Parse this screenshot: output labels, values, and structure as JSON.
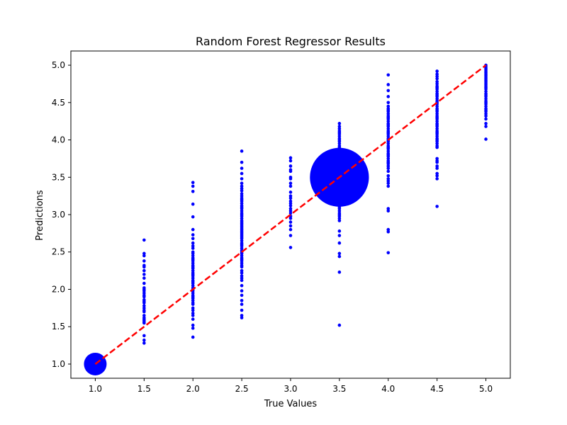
{
  "chart_data": {
    "type": "scatter",
    "title": "Random Forest Regressor Results",
    "xlabel": "True Values",
    "ylabel": "Predictions",
    "xlim": [
      0.75,
      5.25
    ],
    "ylim": [
      0.81,
      5.19
    ],
    "xticks": [
      1.0,
      1.5,
      2.0,
      2.5,
      3.0,
      3.5,
      4.0,
      4.5,
      5.0
    ],
    "yticks": [
      1.0,
      1.5,
      2.0,
      2.5,
      3.0,
      3.5,
      4.0,
      4.5,
      5.0
    ],
    "grid": false,
    "point_color": "#0000ff",
    "reference_line": {
      "x": [
        1.0,
        5.0
      ],
      "y": [
        1.0,
        5.0
      ],
      "color": "#ff0000",
      "style": "dashed"
    },
    "large_markers": [
      {
        "x": 1.0,
        "y": 1.0,
        "relative_size": 1
      },
      {
        "x": 3.5,
        "y": 3.5,
        "relative_size": 2.6
      }
    ],
    "series": [
      {
        "x": 1.5,
        "values": [
          2.66,
          2.48,
          2.45,
          2.38,
          2.32,
          2.3,
          2.25,
          2.2,
          2.15,
          2.08,
          2.02,
          2.0,
          1.98,
          1.95,
          1.92,
          1.9,
          1.86,
          1.84,
          1.82,
          1.78,
          1.75,
          1.72,
          1.7,
          1.65,
          1.62,
          1.6,
          1.58,
          1.56,
          1.55,
          1.38,
          1.32,
          1.28
        ]
      },
      {
        "x": 2.0,
        "values": [
          3.43,
          3.38,
          3.31,
          3.14,
          2.97,
          2.8,
          2.73,
          2.68,
          2.62,
          2.58,
          2.55,
          2.5,
          2.48,
          2.45,
          2.42,
          2.4,
          2.38,
          2.35,
          2.32,
          2.3,
          2.28,
          2.25,
          2.22,
          2.2,
          2.18,
          2.15,
          2.12,
          2.1,
          2.08,
          2.05,
          2.02,
          2.0,
          1.98,
          1.95,
          1.92,
          1.9,
          1.88,
          1.85,
          1.82,
          1.8,
          1.75,
          1.72,
          1.68,
          1.65,
          1.6,
          1.52,
          1.48,
          1.36
        ]
      },
      {
        "x": 2.5,
        "values": [
          3.85,
          3.7,
          3.62,
          3.55,
          3.48,
          3.42,
          3.38,
          3.35,
          3.32,
          3.28,
          3.25,
          3.22,
          3.2,
          3.18,
          3.15,
          3.12,
          3.1,
          3.08,
          3.05,
          3.02,
          3.0,
          2.98,
          2.95,
          2.92,
          2.9,
          2.88,
          2.86,
          2.84,
          2.82,
          2.8,
          2.78,
          2.76,
          2.74,
          2.72,
          2.7,
          2.68,
          2.65,
          2.62,
          2.6,
          2.58,
          2.55,
          2.52,
          2.5,
          2.48,
          2.45,
          2.42,
          2.4,
          2.38,
          2.35,
          2.32,
          2.3,
          2.25,
          2.22,
          2.18,
          2.15,
          2.12,
          2.05,
          1.98,
          1.92,
          1.85,
          1.8,
          1.72,
          1.65,
          1.62
        ]
      },
      {
        "x": 3.0,
        "values": [
          3.76,
          3.72,
          3.65,
          3.6,
          3.58,
          3.5,
          3.48,
          3.42,
          3.38,
          3.3,
          3.25,
          3.22,
          3.18,
          3.15,
          3.12,
          3.08,
          3.05,
          3.02,
          2.98,
          2.95,
          2.9,
          2.85,
          2.8,
          2.72,
          2.56
        ]
      },
      {
        "x": 3.5,
        "values": [
          4.22,
          4.18,
          4.15,
          4.12,
          4.1,
          4.08,
          4.05,
          4.02,
          4.0,
          3.98,
          3.95,
          3.92,
          3.9,
          3.88,
          3.85,
          3.82,
          3.8,
          3.78,
          3.75,
          3.72,
          3.7,
          3.68,
          3.65,
          3.62,
          3.6,
          3.58,
          3.55,
          3.52,
          3.48,
          3.45,
          3.42,
          3.4,
          3.38,
          3.35,
          3.32,
          3.3,
          3.28,
          3.25,
          3.22,
          3.2,
          3.18,
          3.15,
          3.12,
          3.1,
          3.08,
          3.05,
          3.02,
          3.0,
          2.98,
          2.95,
          2.92,
          2.78,
          2.72,
          2.62,
          2.48,
          2.44,
          2.23,
          1.52
        ]
      },
      {
        "x": 4.0,
        "values": [
          4.87,
          4.74,
          4.66,
          4.58,
          4.5,
          4.45,
          4.42,
          4.4,
          4.38,
          4.35,
          4.32,
          4.3,
          4.28,
          4.25,
          4.22,
          4.2,
          4.18,
          4.15,
          4.12,
          4.1,
          4.08,
          4.05,
          4.02,
          4.0,
          3.98,
          3.95,
          3.92,
          3.9,
          3.88,
          3.85,
          3.82,
          3.8,
          3.78,
          3.75,
          3.72,
          3.7,
          3.68,
          3.65,
          3.62,
          3.58,
          3.52,
          3.48,
          3.45,
          3.42,
          3.38,
          3.08,
          3.05,
          2.8,
          2.77,
          2.49
        ]
      },
      {
        "x": 4.5,
        "values": [
          4.92,
          4.88,
          4.85,
          4.82,
          4.78,
          4.75,
          4.72,
          4.7,
          4.68,
          4.65,
          4.62,
          4.6,
          4.58,
          4.55,
          4.52,
          4.5,
          4.48,
          4.45,
          4.42,
          4.4,
          4.38,
          4.35,
          4.32,
          4.3,
          4.28,
          4.25,
          4.22,
          4.2,
          4.18,
          4.15,
          4.12,
          4.1,
          4.08,
          4.05,
          4.02,
          4.0,
          3.98,
          3.95,
          3.92,
          3.9,
          3.75,
          3.72,
          3.7,
          3.65,
          3.62,
          3.55,
          3.52,
          3.48,
          3.11
        ]
      },
      {
        "x": 5.0,
        "values": [
          5.0,
          4.98,
          4.96,
          4.94,
          4.92,
          4.9,
          4.88,
          4.86,
          4.84,
          4.82,
          4.8,
          4.78,
          4.76,
          4.74,
          4.72,
          4.7,
          4.68,
          4.65,
          4.62,
          4.6,
          4.58,
          4.55,
          4.52,
          4.5,
          4.48,
          4.45,
          4.42,
          4.4,
          4.38,
          4.35,
          4.32,
          4.28,
          4.22,
          4.18,
          4.01
        ]
      }
    ]
  }
}
